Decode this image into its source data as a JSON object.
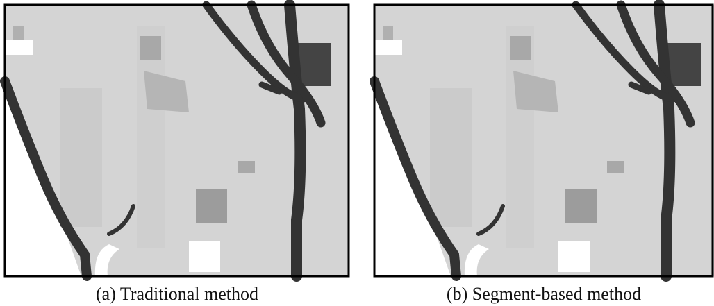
{
  "figures": [
    {
      "caption": "(a) Traditional method"
    },
    {
      "caption": "(b) Segment-based method"
    }
  ]
}
